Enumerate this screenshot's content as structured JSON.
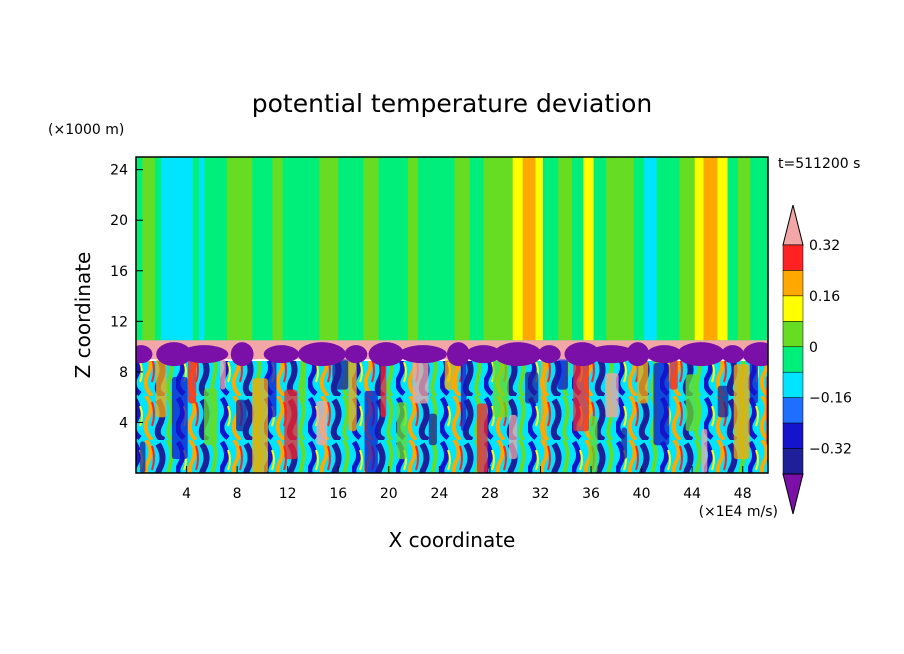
{
  "chart_data": {
    "type": "heatmap",
    "title": "potential temperature deviation",
    "xlabel": "X coordinate",
    "ylabel": "Z coordinate",
    "x_unit": "(×1E4 m/s)",
    "y_unit": "(×1000 m)",
    "time_label": "t=511200 s",
    "xlim": [
      0,
      50
    ],
    "ylim": [
      0,
      25
    ],
    "x_ticks": [
      4,
      8,
      12,
      16,
      20,
      24,
      28,
      32,
      36,
      40,
      44,
      48
    ],
    "y_ticks": [
      4,
      8,
      12,
      16,
      20,
      24
    ],
    "tropopause_band_z": [
      9.0,
      10.5
    ],
    "levels": [
      -0.4,
      -0.32,
      -0.24,
      -0.16,
      -0.08,
      0,
      0.08,
      0.16,
      0.24,
      0.32,
      0.4
    ],
    "colorbar_labels": [
      "0.32",
      "0.16",
      "0",
      "−0.16",
      "−0.32"
    ],
    "colorbar_label_values": [
      0.32,
      0.16,
      0,
      -0.16,
      -0.32
    ],
    "colorbar_colors": [
      "#7a10a8",
      "#1f1f9a",
      "#1414cc",
      "#1e6eff",
      "#00e5ff",
      "#00ee7a",
      "#66dd22",
      "#ffff00",
      "#ffa800",
      "#ff2222",
      "#f3a6a6"
    ],
    "grid": false
  }
}
